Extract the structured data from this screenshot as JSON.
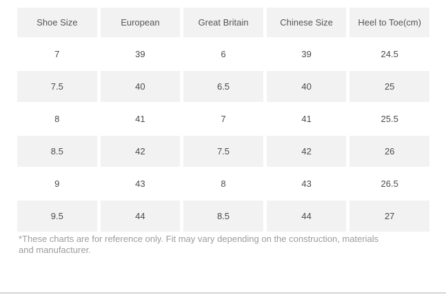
{
  "size_chart": {
    "columns": [
      "Shoe Size",
      "European",
      "Great Britain",
      "Chinese Size",
      "Heel to Toe(cm)"
    ],
    "rows": [
      [
        "7",
        "39",
        "6",
        "39",
        "24.5"
      ],
      [
        "7.5",
        "40",
        "6.5",
        "40",
        "25"
      ],
      [
        "8",
        "41",
        "7",
        "41",
        "25.5"
      ],
      [
        "8.5",
        "42",
        "7.5",
        "42",
        "26"
      ],
      [
        "9",
        "43",
        "8",
        "43",
        "26.5"
      ],
      [
        "9.5",
        "44",
        "8.5",
        "44",
        "27"
      ]
    ],
    "footnote": "*These charts are for reference only. Fit may vary depending on the construction, materials and manufacturer."
  },
  "colors": {
    "shaded_cell": "#f2f2f2",
    "cell_text": "#4a4a4a",
    "footnote_text": "#9b9b9b",
    "divider": "#d4d4d4"
  }
}
